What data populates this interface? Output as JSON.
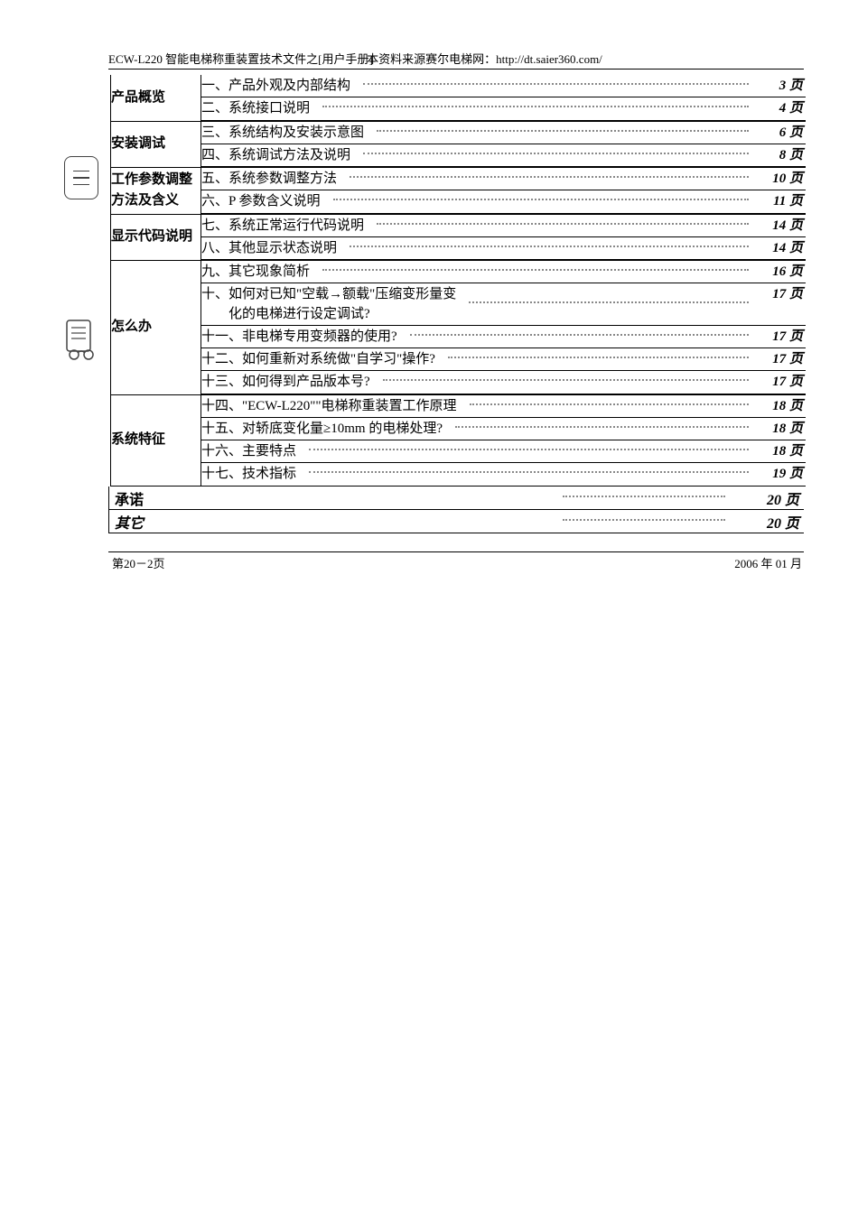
{
  "header": {
    "doc_title": "ECW-L220 智能电梯称重装置技术文件之[用户手册]",
    "watermark": "本资料来源赛尔电梯网：http://dt.saier360.com/"
  },
  "page_suffix": "页",
  "sections": [
    {
      "name": "产品概览",
      "entries": [
        {
          "label": "一、产品外观及内部结构",
          "page": "3"
        },
        {
          "label": "二、系统接口说明",
          "page": "4"
        }
      ]
    },
    {
      "name": "安装调试",
      "entries": [
        {
          "label": "三、系统结构及安装示意图",
          "page": "6"
        },
        {
          "label": "四、系统调试方法及说明",
          "page": "8"
        }
      ]
    },
    {
      "name": "工作参数调整方法及含义",
      "name_line1": "工作参数调整",
      "name_line2": "方法及含义",
      "entries": [
        {
          "label": "五、系统参数调整方法",
          "page": "10"
        },
        {
          "label": "六、P 参数含义说明",
          "page": "11"
        }
      ]
    },
    {
      "name": "显示代码说明",
      "entries": [
        {
          "label": "七、系统正常运行代码说明",
          "page": "14"
        },
        {
          "label": "八、其他显示状态说明",
          "page": "14"
        }
      ]
    },
    {
      "name": "怎么办",
      "entries": [
        {
          "label": "九、其它现象简析",
          "page": "16"
        },
        {
          "label": "十、如何对已知\"空载→额载\"压缩变形量变\n        化的电梯进行设定调试?",
          "page": "17",
          "wrapped": true
        },
        {
          "label": "十一、非电梯专用变频器的使用?",
          "page": "17"
        },
        {
          "label": "十二、如何重新对系统做\"自学习\"操作?",
          "page": "17"
        },
        {
          "label": "十三、如何得到产品版本号?",
          "page": "17"
        }
      ]
    },
    {
      "name": "系统特征",
      "entries": [
        {
          "label": "十四、\"ECW-L220\"\"电梯称重装置工作原理",
          "page": "18"
        },
        {
          "label": "十五、对轿底变化量≥10mm 的电梯处理?",
          "page": "18"
        },
        {
          "label": "十六、主要特点",
          "page": "18"
        },
        {
          "label": "十七、技术指标",
          "page": "19"
        }
      ]
    }
  ],
  "tail_sections": [
    {
      "name": "承诺",
      "page": "20"
    },
    {
      "name": "其它",
      "page": "20"
    }
  ],
  "footer": {
    "left": "第20－2页",
    "right": "2006 年 01 月"
  },
  "style": {
    "text_color": "#000000",
    "dot_color": "#888888",
    "border_color": "#000000",
    "background": "#ffffff",
    "body_fontsize": 15,
    "header_fontsize": 13,
    "footer_fontsize": 13,
    "page_font_style": "italic-bold"
  }
}
